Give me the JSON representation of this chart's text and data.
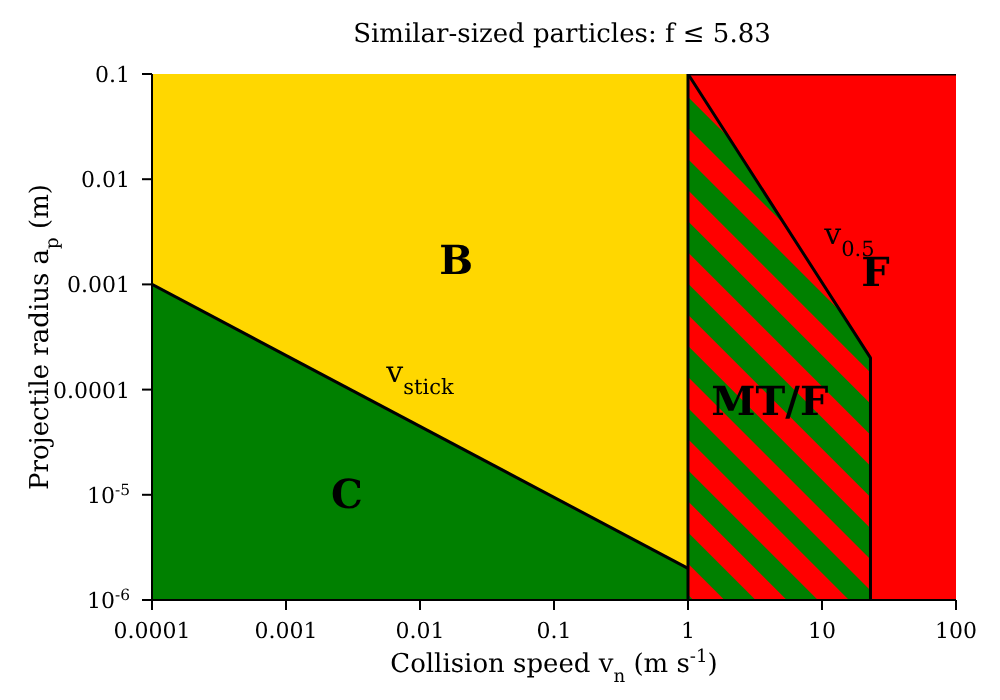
{
  "chart_data": {
    "type": "area",
    "title": "Similar-sized particles: f ≤ 5.83",
    "xlabel": "Collision speed v$_{n}$ (m s$^{-1}$)",
    "ylabel": "Projectile radius a$_{p}$ (m)",
    "log": "xy",
    "xlim": [
      0.0001,
      100
    ],
    "ylim": [
      1e-06,
      0.1
    ],
    "xticks": [
      0.0001,
      0.001,
      0.01,
      0.1,
      1,
      10,
      100
    ],
    "yticks": [
      {
        "value": 1e-06,
        "label": "10$^{-6}$"
      },
      {
        "value": 1e-05,
        "label": "10$^{-5}$"
      },
      0.0001,
      0.001,
      0.01,
      0.1
    ],
    "series": [
      {
        "name": "B",
        "color": "#ffd700",
        "x": [
          0.0001,
          1
        ],
        "values": [
          0.1,
          0.1
        ]
      },
      {
        "name": "C",
        "color": "#008000",
        "x": [
          0.0001,
          1
        ],
        "values": [
          0.001,
          2e-06
        ]
      },
      {
        "name": "F",
        "color": "#ff0000",
        "x": [
          1,
          100
        ],
        "values": [
          0.1,
          0.1
        ]
      },
      {
        "name": "MT/F",
        "color": "#008000",
        "x": [
          1,
          23,
          23
        ],
        "values": [
          0.1,
          0.0002,
          1e-06
        ]
      }
    ],
    "ref_lines": [
      {
        "axis": "x",
        "value": 1,
        "color": "#000000"
      }
    ],
    "annotations": [
      "v$_{stick}$",
      "v$_{0.5}$"
    ]
  }
}
